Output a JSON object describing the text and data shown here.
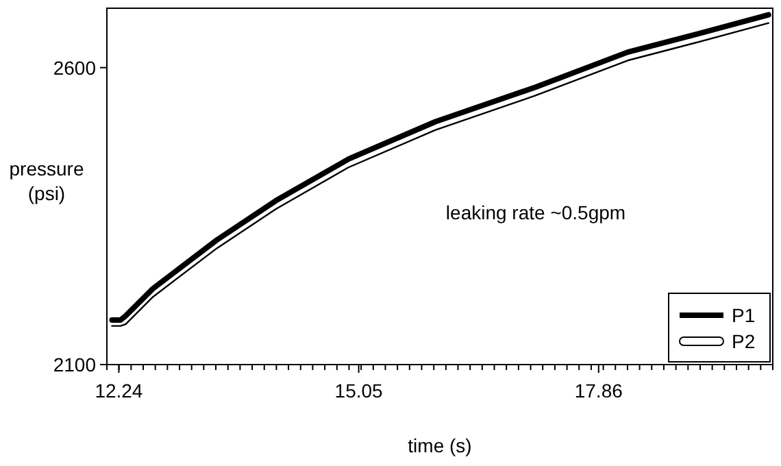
{
  "chart_data": {
    "type": "line",
    "xlabel": "time (s)",
    "ylabel": "pressure (psi)",
    "annotations": [
      "leaking rate ~0.5gpm"
    ],
    "x": [
      12.16,
      12.26,
      12.32,
      12.64,
      13.39,
      14.08,
      14.93,
      15.95,
      17.12,
      18.2,
      19.0,
      19.85
    ],
    "xlim": [
      12.1,
      19.9
    ],
    "xticks": [
      12.24,
      15.05,
      17.86
    ],
    "ylim": [
      2100,
      2700
    ],
    "yticks": [
      2100,
      2600
    ],
    "series": [
      {
        "name": "P1",
        "color": "#000000",
        "values": [
          2175,
          2175,
          2182,
          2228,
          2310,
          2376,
          2446,
          2509,
          2567,
          2626,
          2656,
          2689
        ]
      },
      {
        "name": "P2",
        "color": "#000000",
        "values": [
          2165,
          2165,
          2168,
          2214,
          2296,
          2362,
          2432,
          2495,
          2553,
          2612,
          2642,
          2675
        ]
      }
    ],
    "legend": "bottom right",
    "grid": false,
    "marker": "none",
    "line_style": "solid"
  }
}
